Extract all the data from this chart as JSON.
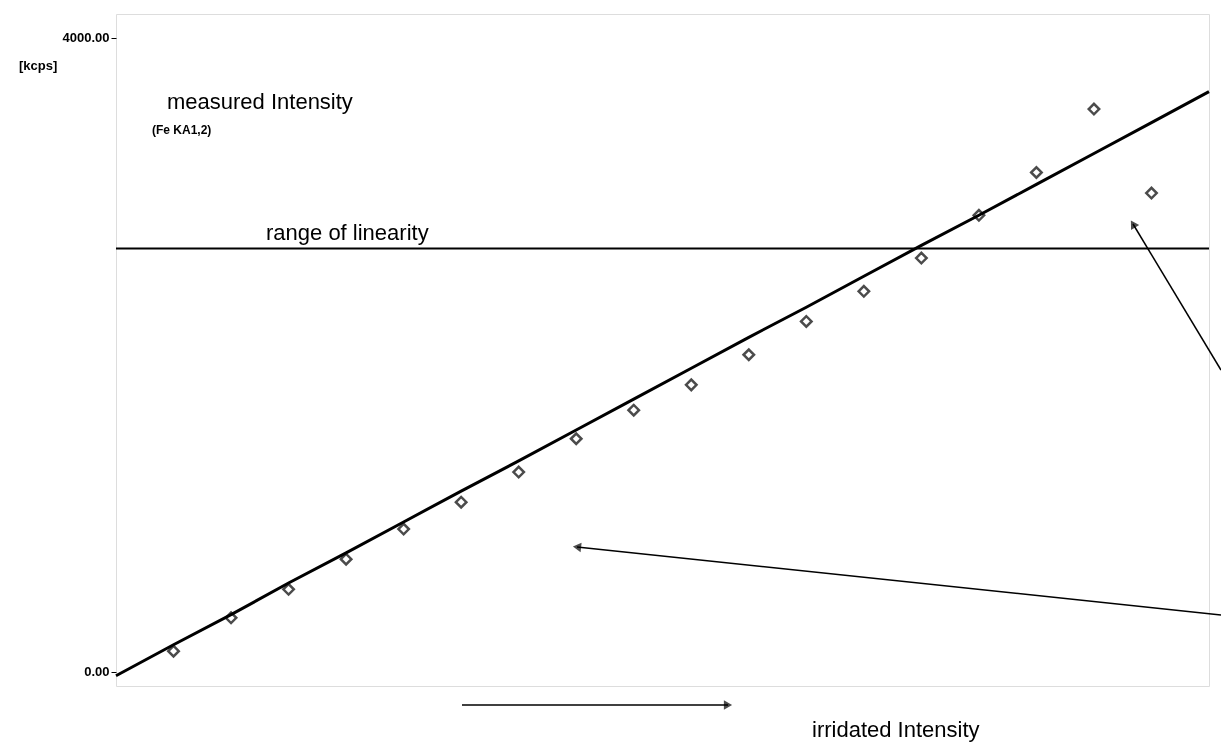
{
  "chart_data": {
    "type": "scatter",
    "xlabel": "irridated Intensity",
    "ylabel": "measured Intensity",
    "annotations": [
      "(Fe KA1,2)",
      "[kcps]"
    ],
    "categories": [
      null,
      null,
      null,
      null,
      null,
      null,
      null,
      null,
      null,
      null,
      null,
      null,
      null,
      null,
      null,
      null,
      null,
      null,
      null,
      null
    ],
    "series": [
      {
        "color": "#000000",
        "marker": "diamond",
        "values": [
          null,
          130,
          340,
          520,
          710,
          900,
          1070,
          1260,
          1470,
          1650,
          1810,
          2000,
          2210,
          2400,
          2610,
          2880,
          3150,
          3550,
          3020,
          null
        ]
      },
      {
        "type": "line",
        "color": "#000000",
        "line_style": "solid",
        "values": [
          -25,
          170,
          360,
          560,
          750,
          945,
          1140,
          1330,
          1525,
          1720,
          1915,
          2110,
          2300,
          2495,
          2690,
          2880,
          3075,
          3270,
          3465,
          3660
        ]
      }
    ],
    "ylim": [
      -90,
      4150
    ],
    "yticks": [
      {
        "value": 0,
        "label": "0.00"
      },
      {
        "value": 4000,
        "label": "4000.00"
      }
    ],
    "ref_lines": [
      {
        "axis": "y",
        "value": 2670,
        "label": "range of linearity",
        "color": "#000000"
      }
    ],
    "grid": false
  }
}
